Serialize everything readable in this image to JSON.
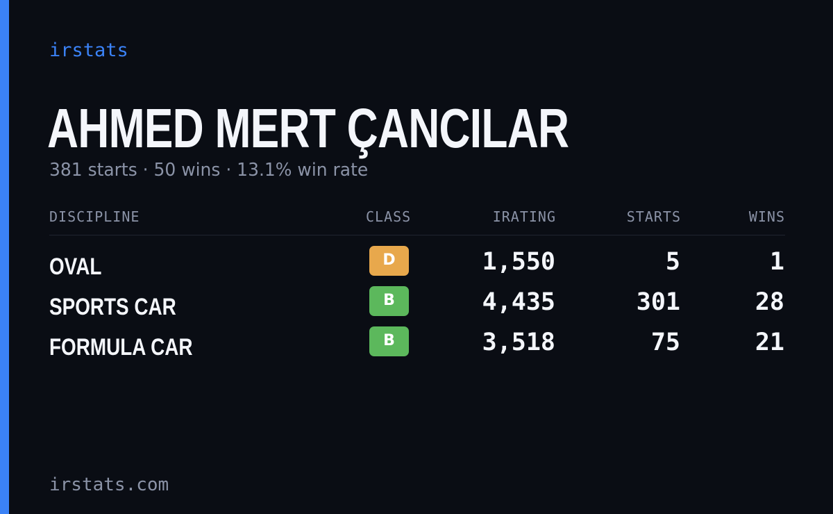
{
  "brand": "irstats",
  "driver": {
    "name": "AHMED MERT ÇANCILAR",
    "summary": "381 starts · 50 wins · 13.1% win rate"
  },
  "table": {
    "headers": {
      "discipline": "DISCIPLINE",
      "class": "CLASS",
      "irating": "IRATING",
      "starts": "STARTS",
      "wins": "WINS"
    },
    "rows": [
      {
        "discipline": "OVAL",
        "class": "D",
        "irating": "1,550",
        "starts": "5",
        "wins": "1"
      },
      {
        "discipline": "SPORTS CAR",
        "class": "B",
        "irating": "4,435",
        "starts": "301",
        "wins": "28"
      },
      {
        "discipline": "FORMULA CAR",
        "class": "B",
        "irating": "3,518",
        "starts": "75",
        "wins": "21"
      }
    ]
  },
  "footer": "irstats.com",
  "colors": {
    "background": "#0a0d14",
    "accent": "#3b82f6",
    "class_D": "#e8a84c",
    "class_B": "#5cb85c",
    "muted_text": "#8b93a7"
  }
}
